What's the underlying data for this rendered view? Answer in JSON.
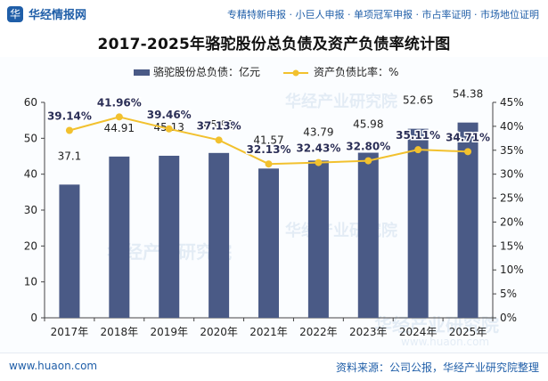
{
  "brand": {
    "name": "华经情报网",
    "logo_glyph": "华"
  },
  "header": {
    "tagline": "专精特新申报 · 小巨人申报 · 单项冠军申报 · 市占率证明 · 市场地位证明"
  },
  "footer": {
    "website": "www.huaon.com",
    "source": "资料来源：公司公报，华经产业研究院整理"
  },
  "chart_data": {
    "type": "bar",
    "title": "2017-2025年骆驼股份总负债及资产负债率统计图",
    "categories": [
      "2017年",
      "2018年",
      "2019年",
      "2020年",
      "2021年",
      "2022年",
      "2023年",
      "2024年",
      "2025年"
    ],
    "series": [
      {
        "name": "骆驼股份总负债：亿元",
        "type": "bar",
        "axis": "left",
        "values": [
          37.1,
          44.91,
          45.13,
          45.91,
          41.57,
          43.79,
          45.98,
          52.65,
          54.38
        ],
        "labels": [
          "37.1",
          "44.91",
          "45.13",
          "45.91",
          "41.57",
          "43.79",
          "45.98",
          "52.65",
          "54.38"
        ]
      },
      {
        "name": "资产负债比率：%",
        "type": "line",
        "axis": "right",
        "values": [
          39.14,
          41.96,
          39.46,
          37.13,
          32.13,
          32.43,
          32.8,
          35.11,
          34.71
        ],
        "labels": [
          "39.14%",
          "41.96%",
          "39.46%",
          "37.13%",
          "32.13%",
          "32.43%",
          "32.80%",
          "35.11%",
          "34.71%"
        ]
      }
    ],
    "left_axis": {
      "ylim": [
        0,
        60
      ],
      "ticks": [
        "0",
        "10",
        "20",
        "30",
        "40",
        "50",
        "60"
      ]
    },
    "right_axis": {
      "ylim": [
        0,
        45
      ],
      "ticks": [
        "0%",
        "5%",
        "10%",
        "15%",
        "20%",
        "25%",
        "30%",
        "35%",
        "40%",
        "45%"
      ]
    },
    "legend_position": "top-center",
    "grid": false,
    "colors": {
      "bar": "#4a5a86",
      "line": "#f2c12e",
      "marker": "#f2c12e",
      "text": "#222222"
    }
  },
  "watermark": {
    "text": "华经产业研究院",
    "url": "www.huaon.com"
  }
}
